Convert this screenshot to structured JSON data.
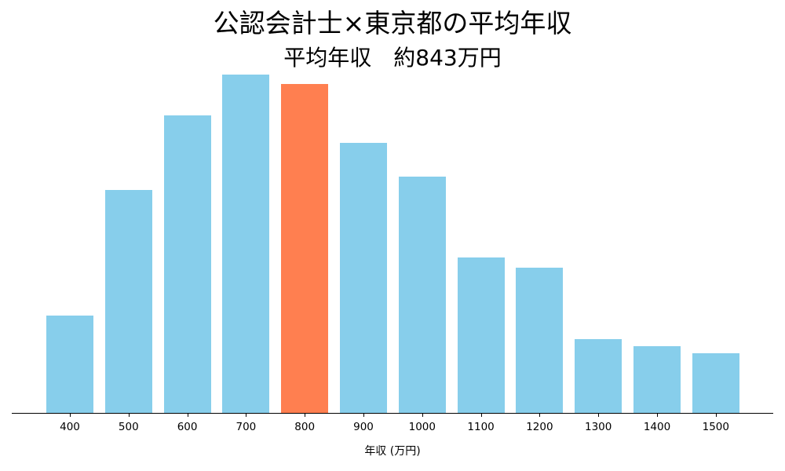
{
  "chart_data": {
    "type": "bar",
    "title": "公認会計士×東京都の平均年収",
    "subtitle": "平均年収　約843万円",
    "xlabel": "年収 (万円)",
    "ylabel": "",
    "categories": [
      "400",
      "500",
      "600",
      "700",
      "800",
      "900",
      "1000",
      "1100",
      "1200",
      "1300",
      "1400",
      "1500"
    ],
    "values": [
      124,
      284,
      379,
      431,
      419,
      344,
      301,
      198,
      185,
      94,
      85,
      76
    ],
    "value_units": "relative frequency (bar height in px; no y-axis shown)",
    "highlight_category": "800",
    "colors": {
      "default": "#87CEEB",
      "highlight": "#FF7F50"
    },
    "ylim": [
      0,
      446
    ],
    "grid": false,
    "legend": null,
    "y_axis_visible": false
  }
}
